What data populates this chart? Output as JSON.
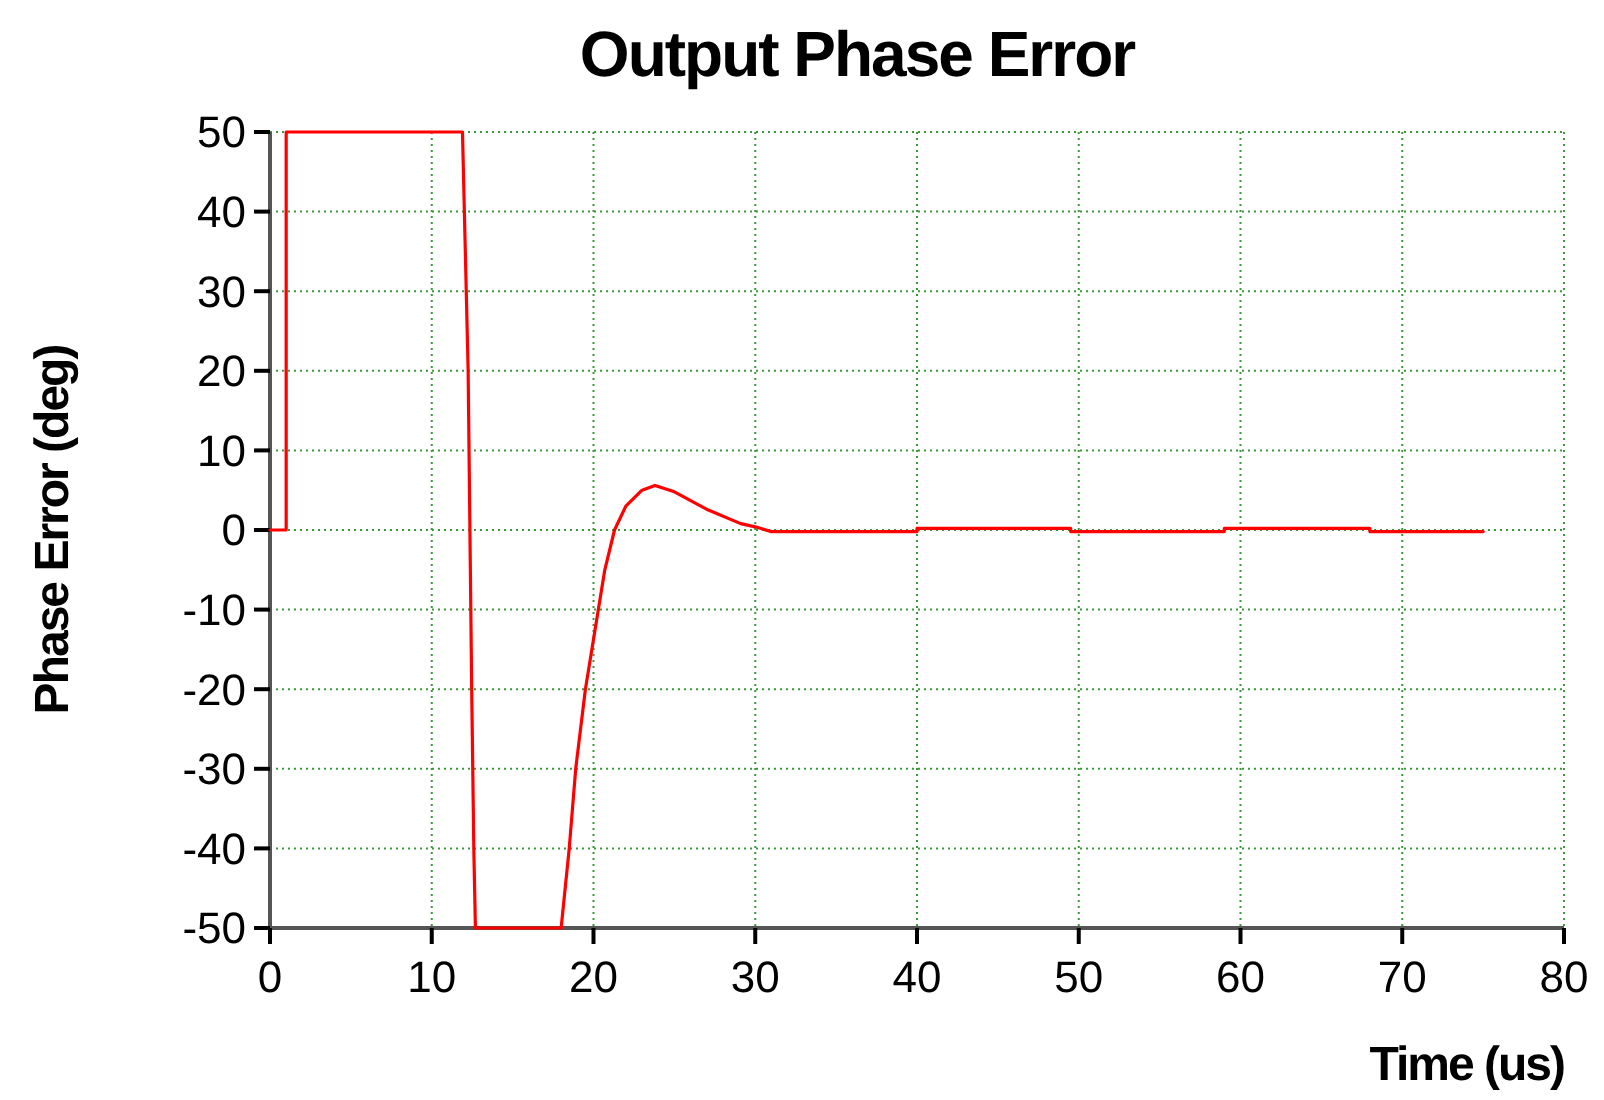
{
  "chart_data": {
    "type": "line",
    "title": "Output Phase Error",
    "xlabel": "Time (us)",
    "ylabel": "Phase Error (deg)",
    "xlim": [
      0,
      80
    ],
    "xticks": [
      0,
      10,
      20,
      30,
      40,
      50,
      60,
      70,
      80
    ],
    "ylim": [
      -50,
      50
    ],
    "yticks": [
      -50,
      -40,
      -30,
      -20,
      -10,
      0,
      10,
      20,
      30,
      40,
      50
    ],
    "grid": true,
    "marker": "none",
    "line_style": "solid",
    "series": [
      {
        "color": "#ff0000",
        "x": [
          0,
          1,
          1,
          11.9,
          12.25,
          12.47,
          12.6,
          12.7,
          18,
          18.5,
          18.9,
          19.5,
          20.3,
          20.7,
          21.3,
          22,
          23,
          23.8,
          25,
          27.1,
          29.1,
          30,
          31,
          40,
          40,
          49.5,
          49.5,
          59,
          59,
          68,
          68,
          75
        ],
        "values": [
          0,
          0,
          50,
          50,
          20,
          -20,
          -40,
          -50,
          -50,
          -40,
          -30,
          -20,
          -10,
          -5,
          0,
          3,
          5,
          5.6,
          4.8,
          2.5,
          0.8,
          0.4,
          -0.2,
          -0.2,
          0.2,
          0.2,
          -0.2,
          -0.2,
          0.2,
          0.2,
          -0.2,
          -0.2
        ]
      }
    ]
  }
}
